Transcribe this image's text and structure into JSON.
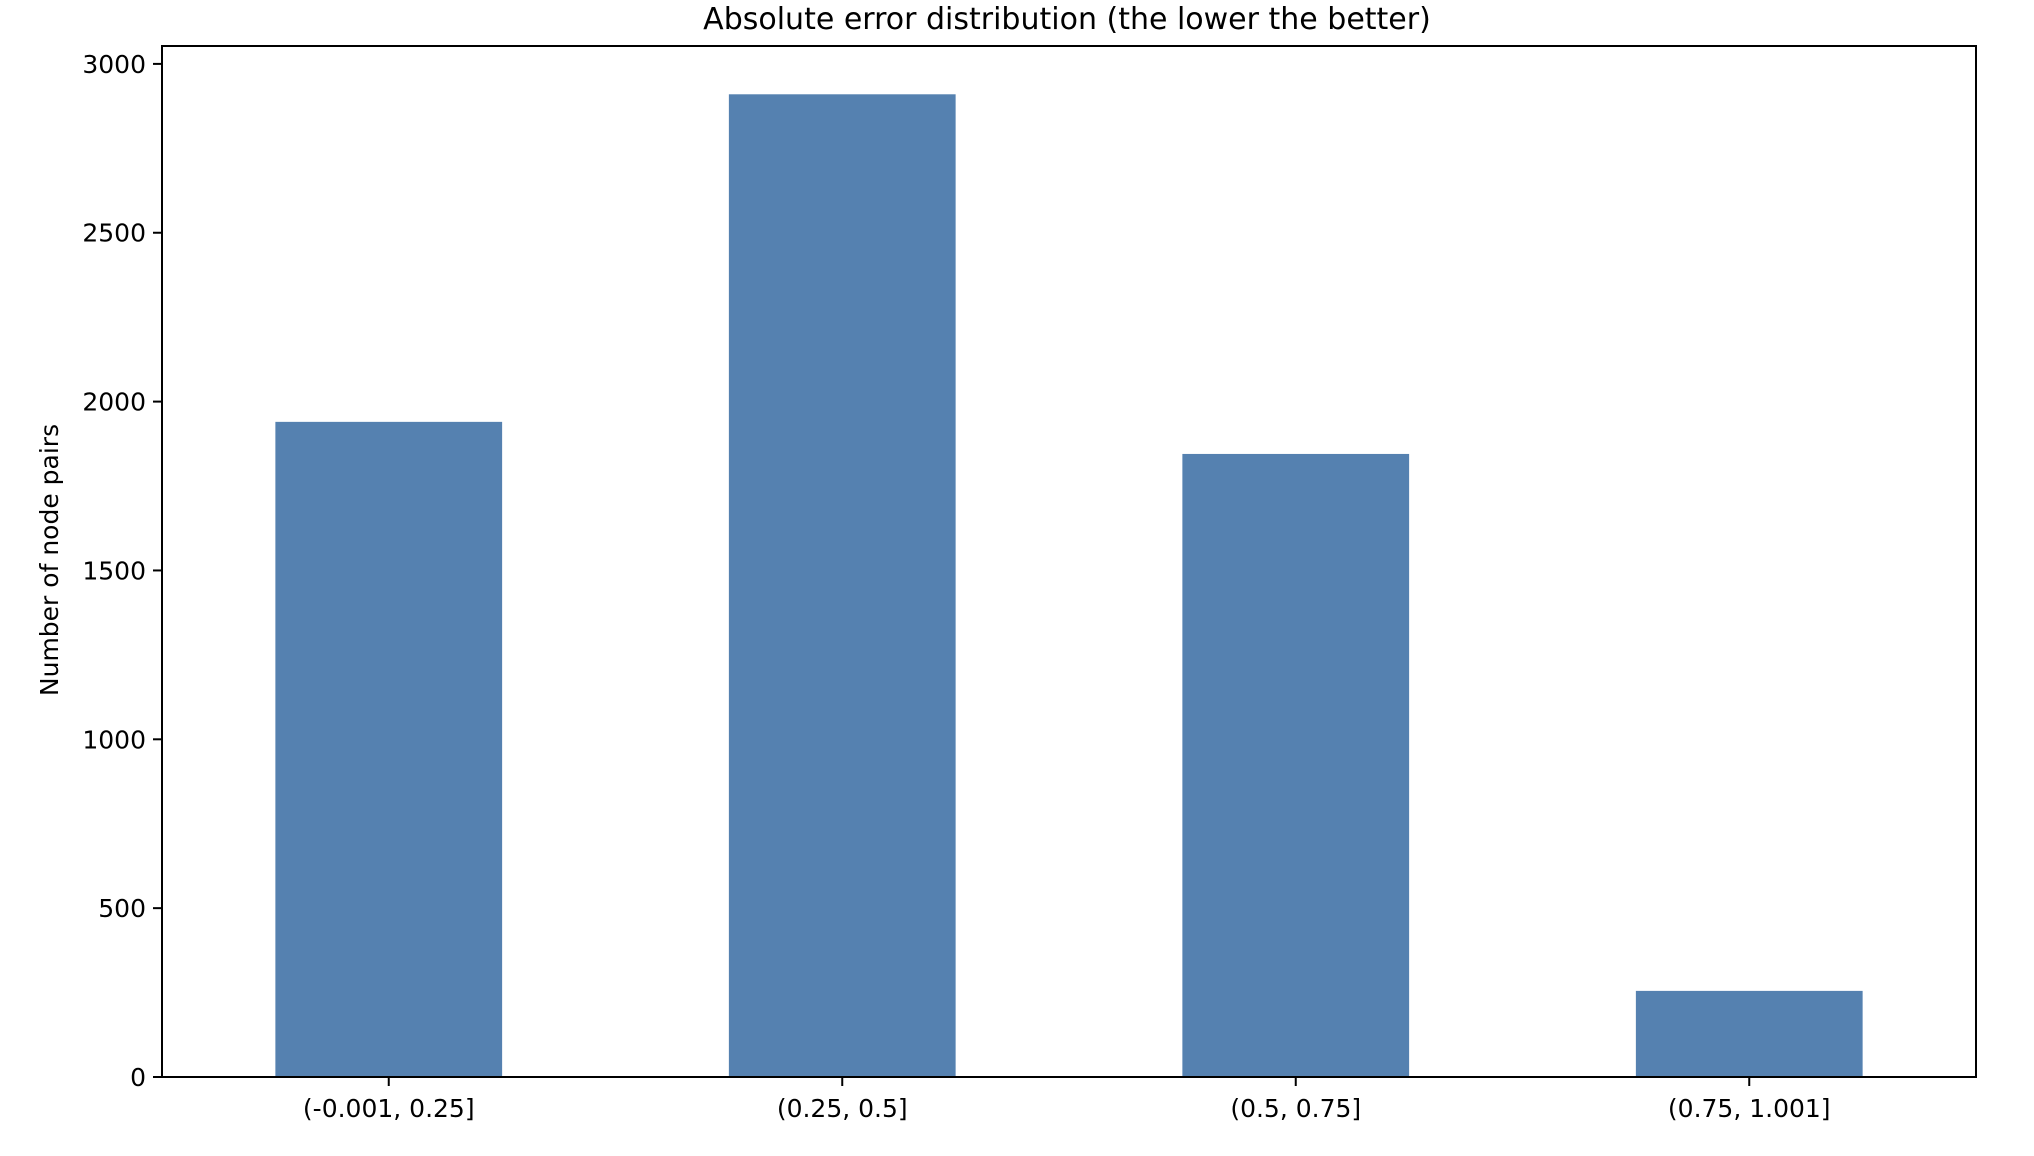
{
  "chart_data": {
    "type": "bar",
    "title": "Absolute error distribution (the lower the better)",
    "xlabel": "",
    "ylabel": "Number of node pairs",
    "categories": [
      "(-0.001, 0.25]",
      "(0.25, 0.5]",
      "(0.5, 0.75]",
      "(0.75, 1.001]"
    ],
    "values": [
      1940,
      2910,
      1845,
      255
    ],
    "ylim": [
      0,
      3053
    ],
    "yticks": [
      0,
      500,
      1000,
      1500,
      2000,
      2500,
      3000
    ],
    "grid": false,
    "legend": "none",
    "bar_color": "#5581b0"
  }
}
